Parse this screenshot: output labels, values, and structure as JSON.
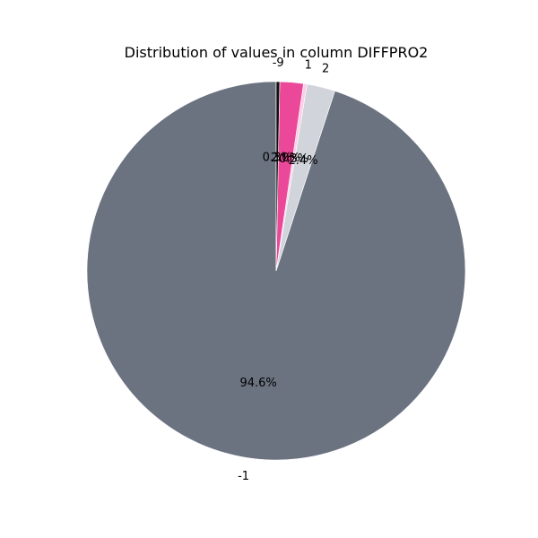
{
  "chart_data": {
    "type": "pie",
    "title": "Distribution of values in column DIFFPRO2",
    "start_angle": "top",
    "direction": "counterclockwise",
    "slices": [
      {
        "label": "-1",
        "value": 94.6,
        "pct_label": "94.6%",
        "color": "#6b7280"
      },
      {
        "label": "2",
        "value": 2.4,
        "pct_label": "2.4%",
        "color": "#d1d5db"
      },
      {
        "label": "1",
        "value": 0.3,
        "pct_label": "0.3%",
        "color": "#fbcfe8"
      },
      {
        "label": "",
        "value": 2.0,
        "pct_label": "2.0%",
        "color": "#ec4899"
      },
      {
        "label": "-9",
        "value": 0.3,
        "pct_label": "0.3%",
        "color": "#111111"
      }
    ]
  }
}
